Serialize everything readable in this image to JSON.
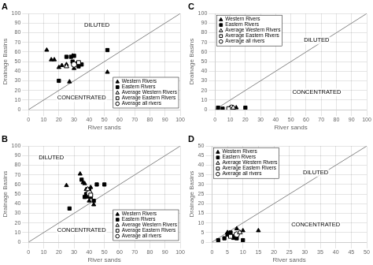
{
  "chart_data": [
    {
      "type": "scatter",
      "title": "A",
      "xlabel": "River sands",
      "ylabel": "Drainage Basins",
      "xlim": [
        0,
        100
      ],
      "ylim": [
        0,
        100
      ],
      "xticks": [
        0,
        10,
        20,
        30,
        40,
        50,
        60,
        70,
        80,
        90,
        100
      ],
      "yticks": [
        0,
        10,
        20,
        30,
        40,
        50,
        60,
        70,
        80,
        90,
        100
      ],
      "grid": true,
      "legend": "lower right",
      "series": [
        {
          "name": "Western Rivers",
          "color": "black",
          "marker": "triangle",
          "values": [
            [
              12,
              62
            ],
            [
              15,
              52
            ],
            [
              17,
              52
            ],
            [
              20,
              44
            ],
            [
              22,
              46
            ],
            [
              25,
              47
            ],
            [
              27,
              29
            ],
            [
              29,
              56
            ],
            [
              30,
              43
            ],
            [
              52,
              39
            ]
          ]
        },
        {
          "name": "Eastern Rivers",
          "color": "black",
          "marker": "square",
          "values": [
            [
              20,
              30
            ],
            [
              25,
              55
            ],
            [
              28,
              55
            ],
            [
              29,
              50
            ],
            [
              30,
              56
            ],
            [
              32,
              48
            ],
            [
              33,
              45
            ],
            [
              35,
              47
            ],
            [
              52,
              62
            ]
          ]
        },
        {
          "name": "Average Western Rivers",
          "color": "black",
          "marker": "open-triangle",
          "values": [
            [
              25,
              45
            ]
          ]
        },
        {
          "name": "Average Eastern Rivers",
          "color": "black",
          "marker": "open-square",
          "values": [
            [
              33,
              49
            ]
          ]
        },
        {
          "name": "Average all rivers",
          "color": "black",
          "marker": "open-circle",
          "values": [
            [
              30,
              47
            ]
          ]
        },
        {
          "type": "line",
          "color": "#888888",
          "values": [
            [
              0,
              0
            ],
            [
              100,
              100
            ]
          ]
        }
      ],
      "annotations": [
        {
          "text": "DILUTED",
          "x": 45,
          "y": 88
        },
        {
          "text": "CONCENTRATED",
          "x": 35,
          "y": 12
        }
      ]
    },
    {
      "type": "scatter",
      "title": "C",
      "xlabel": "River sands",
      "ylabel": "Drainage Basins",
      "xlim": [
        0,
        100
      ],
      "ylim": [
        0,
        100
      ],
      "xticks": [
        0,
        10,
        20,
        30,
        40,
        50,
        60,
        70,
        80,
        90,
        100
      ],
      "yticks": [
        0,
        10,
        20,
        30,
        40,
        50,
        60,
        70,
        80,
        90,
        100
      ],
      "grid": true,
      "legend": "upper left",
      "series": [
        {
          "name": "Western Rivers",
          "color": "black",
          "marker": "triangle",
          "values": [
            [
              11,
              2
            ],
            [
              12,
              1
            ],
            [
              14,
              2
            ]
          ]
        },
        {
          "name": "Eastern Rivers",
          "color": "black",
          "marker": "square",
          "values": [
            [
              2,
              2
            ],
            [
              5,
              1
            ],
            [
              20,
              2
            ]
          ]
        },
        {
          "name": "Average Western Rivers",
          "color": "black",
          "marker": "open-triangle",
          "values": [
            [
              12,
              2
            ]
          ]
        },
        {
          "name": "Average Eastern Rivers",
          "color": "black",
          "marker": "open-square",
          "values": [
            [
              9,
              1
            ]
          ]
        },
        {
          "name": "Average all rivers",
          "color": "black",
          "marker": "open-circle",
          "values": [
            [
              11,
              2
            ]
          ]
        },
        {
          "type": "line",
          "color": "#888888",
          "values": [
            [
              0,
              0
            ],
            [
              100,
              100
            ]
          ]
        }
      ],
      "annotations": [
        {
          "text": "DILUTED",
          "x": 67,
          "y": 72
        },
        {
          "text": "CONCENTRATED",
          "x": 67,
          "y": 18
        }
      ]
    },
    {
      "type": "scatter",
      "title": "B",
      "xlabel": "River sands",
      "ylabel": "Drainage Basins",
      "xlim": [
        0,
        100
      ],
      "ylim": [
        0,
        100
      ],
      "xticks": [
        0,
        10,
        20,
        30,
        40,
        50,
        60,
        70,
        80,
        90,
        100
      ],
      "yticks": [
        0,
        10,
        20,
        30,
        40,
        50,
        60,
        70,
        80,
        90,
        100
      ],
      "grid": true,
      "legend": "lower right",
      "series": [
        {
          "name": "Western Rivers",
          "color": "black",
          "marker": "triangle",
          "values": [
            [
              25,
              59
            ],
            [
              34,
              71
            ],
            [
              36,
              62
            ],
            [
              37,
              61
            ],
            [
              38,
              55
            ],
            [
              38,
              50
            ],
            [
              39,
              47
            ],
            [
              40,
              43
            ],
            [
              41,
              57
            ],
            [
              43,
              39
            ]
          ]
        },
        {
          "name": "Eastern Rivers",
          "color": "black",
          "marker": "square",
          "values": [
            [
              27,
              35
            ],
            [
              35,
              65
            ],
            [
              37,
              47
            ],
            [
              38,
              50
            ],
            [
              40,
              55
            ],
            [
              41,
              47
            ],
            [
              43,
              43
            ],
            [
              45,
              60
            ],
            [
              50,
              60
            ]
          ]
        },
        {
          "name": "Average Western Rivers",
          "color": "black",
          "marker": "open-triangle",
          "values": [
            [
              39,
              55
            ]
          ]
        },
        {
          "name": "Average Eastern Rivers",
          "color": "black",
          "marker": "open-square",
          "values": [
            [
              41,
              49
            ]
          ]
        },
        {
          "name": "Average all rivers",
          "color": "black",
          "marker": "open-circle",
          "values": [
            [
              40,
              51
            ]
          ]
        },
        {
          "type": "line",
          "color": "#888888",
          "values": [
            [
              0,
              0
            ],
            [
              100,
              100
            ]
          ]
        }
      ],
      "annotations": [
        {
          "text": "DILUTED",
          "x": 15,
          "y": 88
        },
        {
          "text": "CONCENTRATED",
          "x": 35,
          "y": 12
        }
      ]
    },
    {
      "type": "scatter",
      "title": "D",
      "xlabel": "River sands",
      "ylabel": "Drainage Basins",
      "xlim": [
        0,
        50
      ],
      "ylim": [
        0,
        50
      ],
      "xticks": [
        0,
        5,
        10,
        15,
        20,
        25,
        30,
        35,
        40,
        45,
        50
      ],
      "yticks": [
        0,
        5,
        10,
        15,
        20,
        25,
        30,
        35,
        40,
        45,
        50
      ],
      "grid": true,
      "legend": "upper left",
      "series": [
        {
          "name": "Western Rivers",
          "color": "black",
          "marker": "triangle",
          "values": [
            [
              5,
              5
            ],
            [
              7,
              2
            ],
            [
              8,
              7
            ],
            [
              10,
              6
            ],
            [
              15,
              6
            ]
          ]
        },
        {
          "name": "Eastern Rivers",
          "color": "black",
          "marker": "square",
          "values": [
            [
              2,
              1
            ],
            [
              4,
              2
            ],
            [
              5,
              4
            ],
            [
              6,
              5
            ],
            [
              7,
              3
            ],
            [
              8,
              2
            ],
            [
              10,
              1
            ]
          ]
        },
        {
          "name": "Average Western Rivers",
          "color": "black",
          "marker": "open-triangle",
          "values": [
            [
              9,
              5
            ]
          ]
        },
        {
          "name": "Average Eastern Rivers",
          "color": "black",
          "marker": "open-square",
          "values": [
            [
              6,
              3
            ]
          ]
        },
        {
          "name": "Average all rivers",
          "color": "black",
          "marker": "open-circle",
          "values": [
            [
              8,
              4
            ]
          ]
        },
        {
          "type": "line",
          "color": "#888888",
          "values": [
            [
              0,
              0
            ],
            [
              50,
              50
            ]
          ]
        }
      ],
      "annotations": [
        {
          "text": "DILUTED",
          "x": 33.5,
          "y": 36
        },
        {
          "text": "CONCENTRATED",
          "x": 33.5,
          "y": 9
        }
      ]
    }
  ]
}
